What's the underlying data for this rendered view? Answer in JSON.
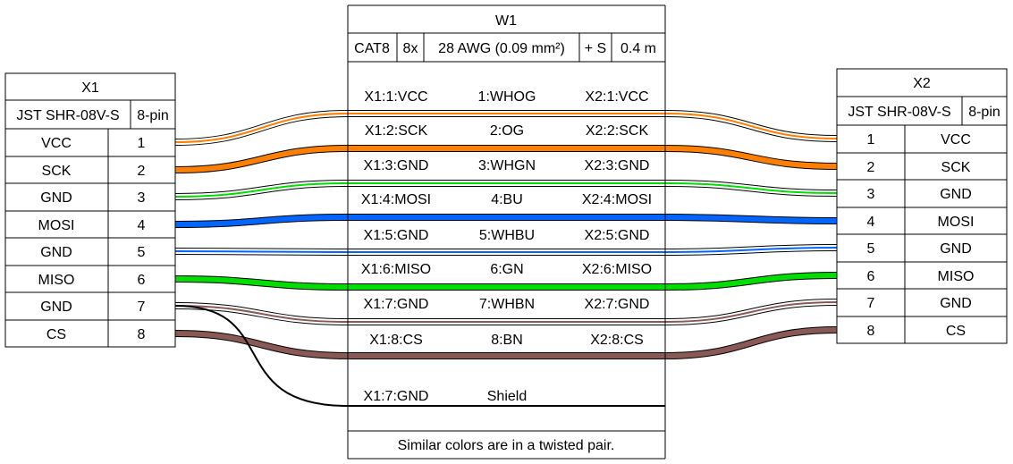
{
  "x1": {
    "title": "X1",
    "type": "JST SHR-08V-S",
    "pincount": "8-pin",
    "pins": [
      {
        "label": "VCC",
        "num": "1"
      },
      {
        "label": "SCK",
        "num": "2"
      },
      {
        "label": "GND",
        "num": "3"
      },
      {
        "label": "MOSI",
        "num": "4"
      },
      {
        "label": "GND",
        "num": "5"
      },
      {
        "label": "MISO",
        "num": "6"
      },
      {
        "label": "GND",
        "num": "7"
      },
      {
        "label": "CS",
        "num": "8"
      }
    ]
  },
  "x2": {
    "title": "X2",
    "type": "JST SHR-08V-S",
    "pincount": "8-pin",
    "pins": [
      {
        "label": "VCC",
        "num": "1"
      },
      {
        "label": "SCK",
        "num": "2"
      },
      {
        "label": "GND",
        "num": "3"
      },
      {
        "label": "MOSI",
        "num": "4"
      },
      {
        "label": "GND",
        "num": "5"
      },
      {
        "label": "MISO",
        "num": "6"
      },
      {
        "label": "GND",
        "num": "7"
      },
      {
        "label": "CS",
        "num": "8"
      }
    ]
  },
  "w1": {
    "title": "W1",
    "specs": [
      "CAT8",
      "8x",
      "28 AWG (0.09 mm²)",
      "+ S",
      "0.4 m"
    ],
    "wires": [
      {
        "left": "X1:1:VCC",
        "mid": "1:WHOG",
        "right": "X2:1:VCC",
        "base": "#ffffff",
        "stripe": "#ff8000"
      },
      {
        "left": "X1:2:SCK",
        "mid": "2:OG",
        "right": "X2:2:SCK",
        "base": "#ff8000",
        "stripe": "#ff8000"
      },
      {
        "left": "X1:3:GND",
        "mid": "3:WHGN",
        "right": "X2:3:GND",
        "base": "#ffffff",
        "stripe": "#00dd00"
      },
      {
        "left": "X1:4:MOSI",
        "mid": "4:BU",
        "right": "X2:4:MOSI",
        "base": "#0066ff",
        "stripe": "#0066ff"
      },
      {
        "left": "X1:5:GND",
        "mid": "5:WHBU",
        "right": "X2:5:GND",
        "base": "#ffffff",
        "stripe": "#0066ff"
      },
      {
        "left": "X1:6:MISO",
        "mid": "6:GN",
        "right": "X2:6:MISO",
        "base": "#00dd00",
        "stripe": "#00dd00"
      },
      {
        "left": "X1:7:GND",
        "mid": "7:WHBN",
        "right": "X2:7:GND",
        "base": "#ffffff",
        "stripe": "#895956"
      },
      {
        "left": "X1:8:CS",
        "mid": "8:BN",
        "right": "X2:8:CS",
        "base": "#895956",
        "stripe": "#895956"
      }
    ],
    "shield": {
      "left": "X1:7:GND",
      "mid": "Shield"
    },
    "note": "Similar colors are in a twisted pair."
  }
}
